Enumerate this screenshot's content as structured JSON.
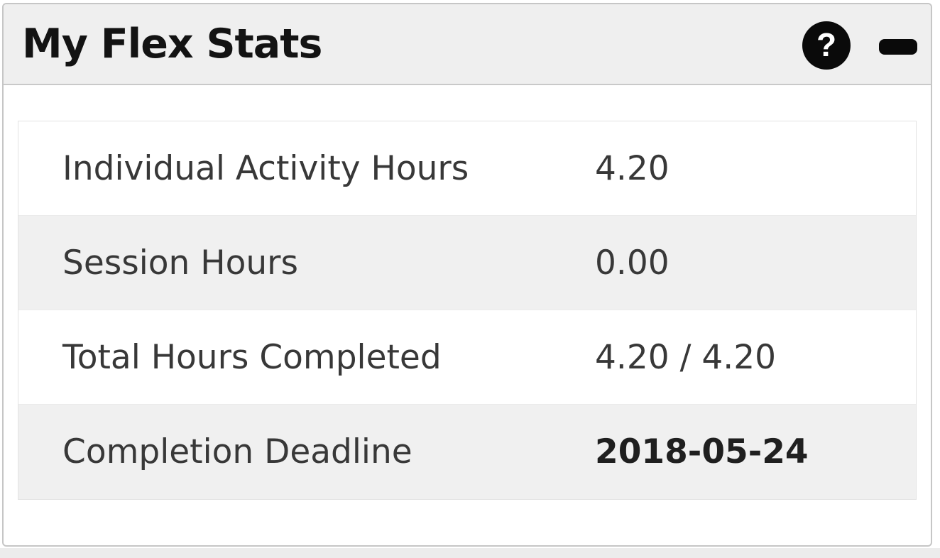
{
  "widget": {
    "title": "My Flex Stats",
    "header": {
      "help_glyph": "?",
      "icons": {
        "help": "question-mark-icon",
        "minimize": "minus-icon"
      }
    },
    "stats": [
      {
        "label": "Individual Activity Hours",
        "value": "4.20"
      },
      {
        "label": "Session Hours",
        "value": "0.00"
      },
      {
        "label": "Total Hours Completed",
        "value": "4.20 / 4.20"
      },
      {
        "label": "Completion Deadline",
        "value": "2018-05-24"
      }
    ],
    "colors": {
      "header_bg": "#efefef",
      "alt_row_bg": "#f0f0f0",
      "widget_border": "#c6c6c6",
      "icon_bg": "#0a0a0a",
      "text": "#383838"
    }
  }
}
